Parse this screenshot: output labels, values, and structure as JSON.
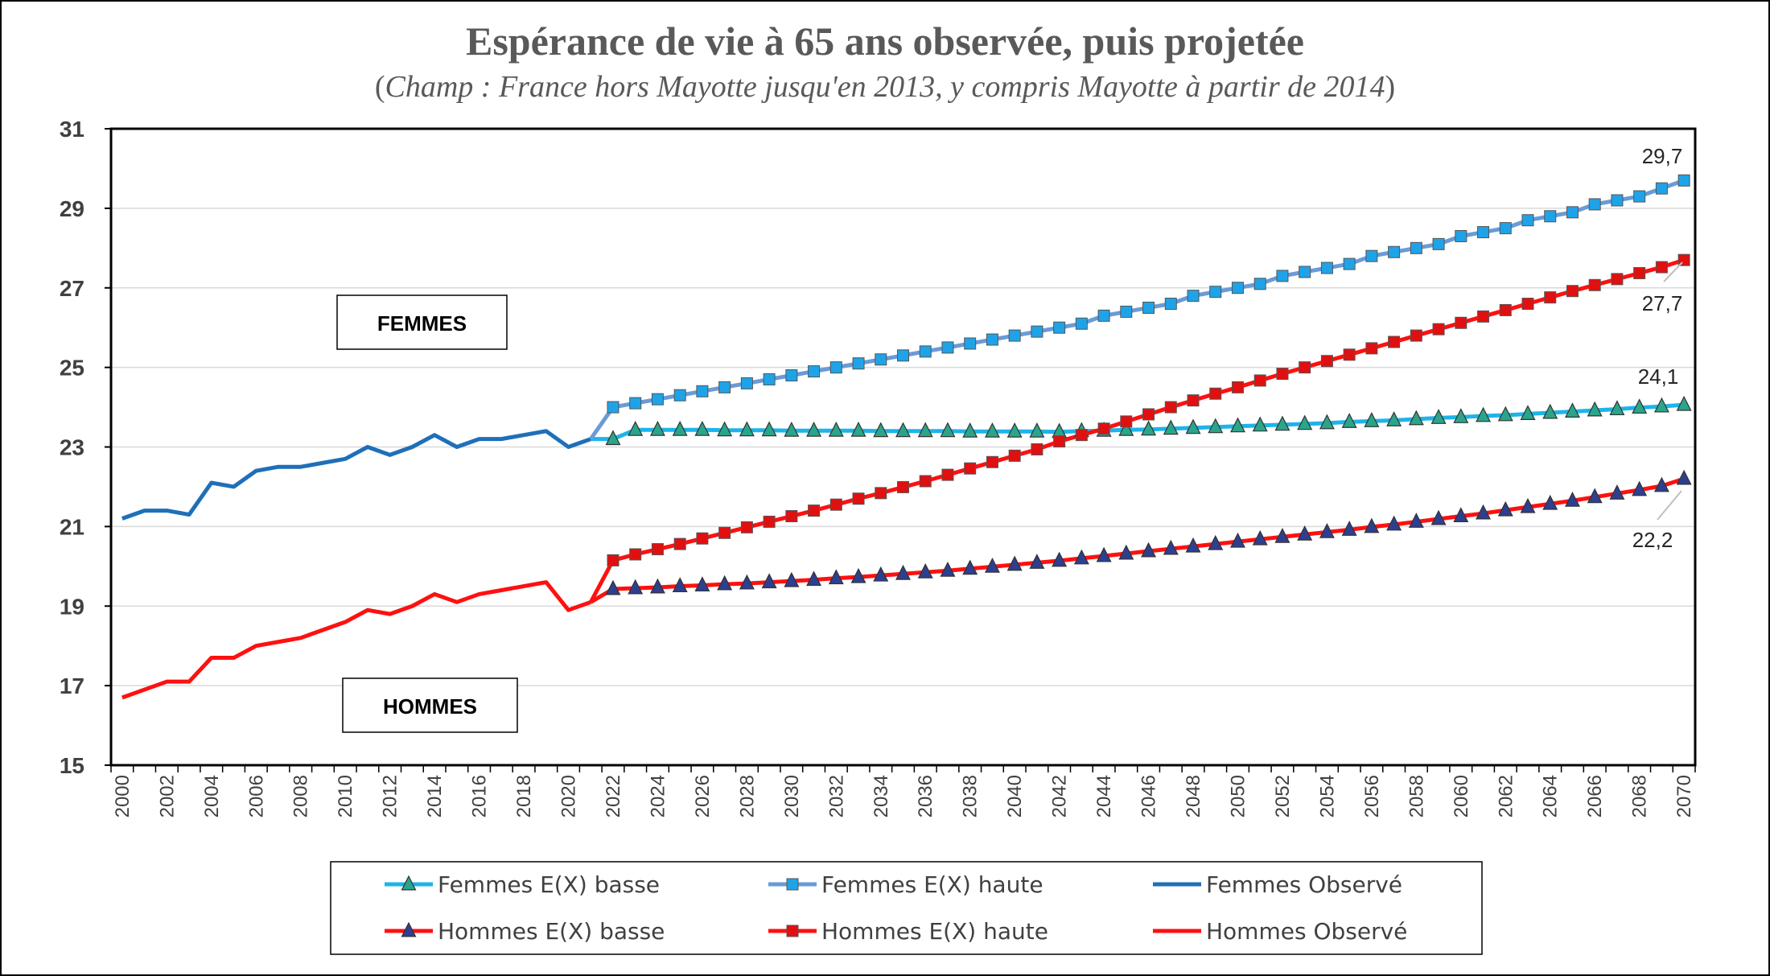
{
  "chart_data": {
    "type": "line",
    "title": "Espérance de vie à 65 ans observée, puis projetée",
    "subtitle": "Champ : France hors Mayotte jusqu'en 2013, y compris Mayotte à partir de 2014",
    "xlabel": "",
    "ylabel": "",
    "xlim": [
      2000,
      2070
    ],
    "ylim": [
      15,
      31
    ],
    "y_ticks": [
      15,
      17,
      19,
      21,
      23,
      25,
      27,
      29,
      31
    ],
    "x_ticks": [
      "2000",
      "2002",
      "2004",
      "2006",
      "2008",
      "2010",
      "2012",
      "2014",
      "2016",
      "2018",
      "2020",
      "2022",
      "2024",
      "2026",
      "2028",
      "2030",
      "2032",
      "2034",
      "2036",
      "2038",
      "2040",
      "2042",
      "2044",
      "2046",
      "2048",
      "2050",
      "2052",
      "2054",
      "2056",
      "2058",
      "2060",
      "2062",
      "2064",
      "2066",
      "2068",
      "2070"
    ],
    "grid": "horizontal",
    "legend_position": "bottom",
    "box_labels": {
      "femmes": "FEMMES",
      "hommes": "HOMMES"
    },
    "end_labels": {
      "femmes_haute": "29,7",
      "hommes_haute": "27,7",
      "femmes_basse": "24,1",
      "hommes_basse": "22,2"
    },
    "series": [
      {
        "name": "Femmes Observé",
        "color": "#1F6FB8",
        "marker": "none",
        "x": [
          2000,
          2001,
          2002,
          2003,
          2004,
          2005,
          2006,
          2007,
          2008,
          2009,
          2010,
          2011,
          2012,
          2013,
          2014,
          2015,
          2016,
          2017,
          2018,
          2019,
          2020,
          2021
        ],
        "values": [
          21.2,
          21.4,
          21.4,
          21.3,
          22.1,
          22.0,
          22.4,
          22.5,
          22.5,
          22.6,
          22.7,
          23.0,
          22.8,
          23.0,
          23.3,
          23.0,
          23.2,
          23.2,
          23.3,
          23.4,
          23.0,
          23.2
        ]
      },
      {
        "name": "Hommes Observé",
        "color": "#FF1010",
        "marker": "none",
        "x": [
          2000,
          2001,
          2002,
          2003,
          2004,
          2005,
          2006,
          2007,
          2008,
          2009,
          2010,
          2011,
          2012,
          2013,
          2014,
          2015,
          2016,
          2017,
          2018,
          2019,
          2020,
          2021
        ],
        "values": [
          16.7,
          16.9,
          17.1,
          17.1,
          17.7,
          17.7,
          18.0,
          18.1,
          18.2,
          18.4,
          18.6,
          18.9,
          18.8,
          19.0,
          19.3,
          19.1,
          19.3,
          19.4,
          19.5,
          19.6,
          18.9,
          19.1
        ]
      },
      {
        "name": "Femmes E(X) basse",
        "color": "#1DB4E8",
        "marker": "triangle",
        "marker_fill": "#2AA58A",
        "x_start": 2021,
        "x_end": 2070,
        "values": [
          23.2,
          23.2,
          23.43,
          23.43,
          23.43,
          23.43,
          23.42,
          23.42,
          23.42,
          23.41,
          23.41,
          23.41,
          23.41,
          23.4,
          23.4,
          23.4,
          23.4,
          23.39,
          23.39,
          23.39,
          23.39,
          23.38,
          23.4,
          23.41,
          23.43,
          23.44,
          23.46,
          23.48,
          23.5,
          23.52,
          23.54,
          23.56,
          23.58,
          23.6,
          23.63,
          23.65,
          23.67,
          23.7,
          23.73,
          23.75,
          23.78,
          23.8,
          23.83,
          23.86,
          23.89,
          23.92,
          23.95,
          23.99,
          24.02,
          24.06
        ]
      },
      {
        "name": "Femmes E(X) haute",
        "color": "#6A9BD8",
        "marker": "square",
        "marker_fill": "#1FA3E8",
        "x_start": 2021,
        "x_end": 2070,
        "values": [
          23.2,
          24.0,
          24.1,
          24.2,
          24.3,
          24.4,
          24.5,
          24.6,
          24.7,
          24.8,
          24.9,
          25.0,
          25.1,
          25.2,
          25.3,
          25.4,
          25.5,
          25.6,
          25.7,
          25.8,
          25.9,
          26.0,
          26.1,
          26.3,
          26.4,
          26.5,
          26.6,
          26.8,
          26.9,
          27.0,
          27.1,
          27.3,
          27.4,
          27.5,
          27.6,
          27.8,
          27.9,
          28.0,
          28.1,
          28.3,
          28.4,
          28.5,
          28.7,
          28.8,
          28.9,
          29.1,
          29.2,
          29.3,
          29.5,
          29.7
        ]
      },
      {
        "name": "Hommes E(X) basse",
        "color": "#FF1010",
        "marker": "triangle",
        "marker_fill": "#2E3F8F",
        "x_start": 2021,
        "x_end": 2070,
        "values": [
          19.1,
          19.43,
          19.45,
          19.47,
          19.5,
          19.52,
          19.55,
          19.57,
          19.6,
          19.63,
          19.66,
          19.7,
          19.73,
          19.77,
          19.81,
          19.85,
          19.89,
          19.94,
          19.99,
          20.04,
          20.09,
          20.14,
          20.2,
          20.26,
          20.32,
          20.38,
          20.44,
          20.5,
          20.56,
          20.62,
          20.68,
          20.74,
          20.8,
          20.86,
          20.92,
          20.99,
          21.05,
          21.12,
          21.19,
          21.26,
          21.33,
          21.41,
          21.49,
          21.57,
          21.65,
          21.74,
          21.83,
          21.92,
          22.02,
          22.2
        ]
      },
      {
        "name": "Hommes E(X) haute",
        "color": "#FF1010",
        "marker": "square",
        "marker_fill": "#E01010",
        "x_start": 2021,
        "x_end": 2070,
        "values": [
          19.1,
          20.15,
          20.3,
          20.43,
          20.56,
          20.7,
          20.84,
          20.98,
          21.12,
          21.26,
          21.4,
          21.55,
          21.7,
          21.84,
          21.99,
          22.14,
          22.3,
          22.46,
          22.62,
          22.78,
          22.94,
          23.14,
          23.3,
          23.46,
          23.64,
          23.82,
          24.0,
          24.17,
          24.34,
          24.5,
          24.67,
          24.84,
          25.0,
          25.16,
          25.32,
          25.48,
          25.64,
          25.8,
          25.96,
          26.12,
          26.28,
          26.44,
          26.6,
          26.76,
          26.92,
          27.07,
          27.22,
          27.37,
          27.52,
          27.7
        ]
      }
    ],
    "legend": [
      {
        "name": "Femmes E(X) basse",
        "color": "#1DB4E8",
        "marker": "triangle",
        "marker_fill": "#2AA58A"
      },
      {
        "name": "Femmes E(X) haute",
        "color": "#6A9BD8",
        "marker": "square",
        "marker_fill": "#1FA3E8"
      },
      {
        "name": "Femmes Observé",
        "color": "#1F6FB8",
        "marker": "none"
      },
      {
        "name": "Hommes E(X) basse",
        "color": "#FF1010",
        "marker": "triangle",
        "marker_fill": "#2E3F8F"
      },
      {
        "name": "Hommes E(X) haute",
        "color": "#FF1010",
        "marker": "square",
        "marker_fill": "#E01010"
      },
      {
        "name": "Hommes Observé",
        "color": "#FF1010",
        "marker": "none"
      }
    ]
  }
}
